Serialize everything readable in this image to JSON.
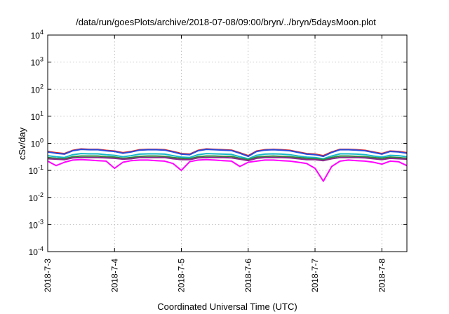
{
  "chart_data": {
    "type": "line",
    "title": "/data/run/goesPlots/archive/2018-07-08/09:00/bryn/../bryn/5daysMoon.plot",
    "xlabel": "Coordinated Universal Time (UTC)",
    "ylabel": "cSv/day",
    "yscale": "log",
    "ylim": [
      0.0001,
      10000
    ],
    "xlim": [
      "2018-07-03 00:00",
      "2018-07-08 09:00"
    ],
    "grid": true,
    "legend": "none",
    "yticks": [
      {
        "base": "10",
        "exp": "4",
        "value": 10000
      },
      {
        "base": "10",
        "exp": "3",
        "value": 1000
      },
      {
        "base": "10",
        "exp": "2",
        "value": 100
      },
      {
        "base": "10",
        "exp": "1",
        "value": 10
      },
      {
        "base": "10",
        "exp": "0",
        "value": 1
      },
      {
        "base": "10",
        "exp": "-1",
        "value": 0.1
      },
      {
        "base": "10",
        "exp": "-2",
        "value": 0.01
      },
      {
        "base": "10",
        "exp": "-3",
        "value": 0.001
      },
      {
        "base": "10",
        "exp": "-4",
        "value": 0.0001
      }
    ],
    "xticks": [
      {
        "label": "2018-7-3",
        "value": "2018-07-03"
      },
      {
        "label": "2018-7-4",
        "value": "2018-07-04"
      },
      {
        "label": "2018-7-5",
        "value": "2018-07-05"
      },
      {
        "label": "2018-7-6",
        "value": "2018-07-06"
      },
      {
        "label": "2018-7-7",
        "value": "2018-07-07"
      },
      {
        "label": "2018-7-8",
        "value": "2018-07-08"
      }
    ],
    "x": [
      "2018-07-03 00:00",
      "2018-07-03 03:00",
      "2018-07-03 06:00",
      "2018-07-03 09:00",
      "2018-07-03 12:00",
      "2018-07-03 15:00",
      "2018-07-03 18:00",
      "2018-07-03 21:00",
      "2018-07-04 00:00",
      "2018-07-04 03:00",
      "2018-07-04 06:00",
      "2018-07-04 09:00",
      "2018-07-04 12:00",
      "2018-07-04 15:00",
      "2018-07-04 18:00",
      "2018-07-04 21:00",
      "2018-07-05 00:00",
      "2018-07-05 03:00",
      "2018-07-05 06:00",
      "2018-07-05 09:00",
      "2018-07-05 12:00",
      "2018-07-05 15:00",
      "2018-07-05 18:00",
      "2018-07-05 21:00",
      "2018-07-06 00:00",
      "2018-07-06 03:00",
      "2018-07-06 06:00",
      "2018-07-06 09:00",
      "2018-07-06 12:00",
      "2018-07-06 15:00",
      "2018-07-06 18:00",
      "2018-07-06 21:00",
      "2018-07-07 00:00",
      "2018-07-07 03:00",
      "2018-07-07 06:00",
      "2018-07-07 09:00",
      "2018-07-07 12:00",
      "2018-07-07 15:00",
      "2018-07-07 18:00",
      "2018-07-07 21:00",
      "2018-07-08 00:00",
      "2018-07-08 03:00",
      "2018-07-08 06:00",
      "2018-07-08 09:00"
    ],
    "series": [
      {
        "color": "#e8211c",
        "values": [
          0.5,
          0.45,
          0.42,
          0.55,
          0.62,
          0.6,
          0.6,
          0.55,
          0.52,
          0.45,
          0.5,
          0.58,
          0.6,
          0.6,
          0.58,
          0.5,
          0.42,
          0.4,
          0.55,
          0.62,
          0.6,
          0.58,
          0.56,
          0.45,
          0.35,
          0.52,
          0.58,
          0.6,
          0.58,
          0.55,
          0.48,
          0.42,
          0.4,
          0.35,
          0.48,
          0.6,
          0.6,
          0.58,
          0.55,
          0.48,
          0.42,
          0.52,
          0.5,
          0.45
        ]
      },
      {
        "color": "#2b4bdb",
        "values": [
          0.48,
          0.43,
          0.4,
          0.53,
          0.6,
          0.58,
          0.58,
          0.53,
          0.5,
          0.43,
          0.48,
          0.56,
          0.58,
          0.58,
          0.56,
          0.48,
          0.4,
          0.38,
          0.53,
          0.6,
          0.58,
          0.56,
          0.54,
          0.43,
          0.33,
          0.5,
          0.56,
          0.58,
          0.56,
          0.53,
          0.46,
          0.4,
          0.38,
          0.33,
          0.46,
          0.58,
          0.58,
          0.56,
          0.53,
          0.46,
          0.4,
          0.5,
          0.48,
          0.43
        ]
      },
      {
        "color": "#17b8c9",
        "values": [
          0.35,
          0.32,
          0.3,
          0.38,
          0.42,
          0.41,
          0.41,
          0.38,
          0.36,
          0.32,
          0.35,
          0.4,
          0.41,
          0.41,
          0.4,
          0.35,
          0.31,
          0.3,
          0.38,
          0.42,
          0.41,
          0.4,
          0.39,
          0.32,
          0.27,
          0.36,
          0.4,
          0.41,
          0.4,
          0.38,
          0.34,
          0.31,
          0.3,
          0.27,
          0.34,
          0.41,
          0.41,
          0.4,
          0.38,
          0.34,
          0.31,
          0.36,
          0.35,
          0.32
        ]
      },
      {
        "color": "#2e8b3a",
        "values": [
          0.3,
          0.28,
          0.27,
          0.32,
          0.34,
          0.34,
          0.34,
          0.32,
          0.31,
          0.28,
          0.3,
          0.33,
          0.34,
          0.34,
          0.33,
          0.3,
          0.28,
          0.27,
          0.32,
          0.34,
          0.34,
          0.33,
          0.33,
          0.28,
          0.25,
          0.31,
          0.33,
          0.34,
          0.33,
          0.32,
          0.3,
          0.28,
          0.27,
          0.25,
          0.3,
          0.34,
          0.34,
          0.33,
          0.32,
          0.3,
          0.28,
          0.31,
          0.3,
          0.28
        ]
      },
      {
        "color": "#8a2a8a",
        "values": [
          0.27,
          0.26,
          0.25,
          0.29,
          0.3,
          0.3,
          0.3,
          0.29,
          0.28,
          0.26,
          0.27,
          0.3,
          0.3,
          0.3,
          0.3,
          0.27,
          0.25,
          0.25,
          0.29,
          0.3,
          0.3,
          0.3,
          0.29,
          0.26,
          0.23,
          0.28,
          0.3,
          0.3,
          0.3,
          0.29,
          0.27,
          0.25,
          0.25,
          0.23,
          0.27,
          0.3,
          0.3,
          0.3,
          0.29,
          0.27,
          0.25,
          0.28,
          0.27,
          0.26
        ]
      },
      {
        "color": "#ff00ff",
        "values": [
          0.22,
          0.15,
          0.2,
          0.24,
          0.25,
          0.24,
          0.23,
          0.22,
          0.12,
          0.2,
          0.23,
          0.24,
          0.24,
          0.23,
          0.22,
          0.18,
          0.1,
          0.21,
          0.24,
          0.25,
          0.24,
          0.23,
          0.22,
          0.14,
          0.2,
          0.22,
          0.24,
          0.24,
          0.23,
          0.22,
          0.2,
          0.18,
          0.12,
          0.04,
          0.14,
          0.22,
          0.24,
          0.23,
          0.22,
          0.2,
          0.17,
          0.22,
          0.21,
          0.15
        ]
      }
    ]
  }
}
